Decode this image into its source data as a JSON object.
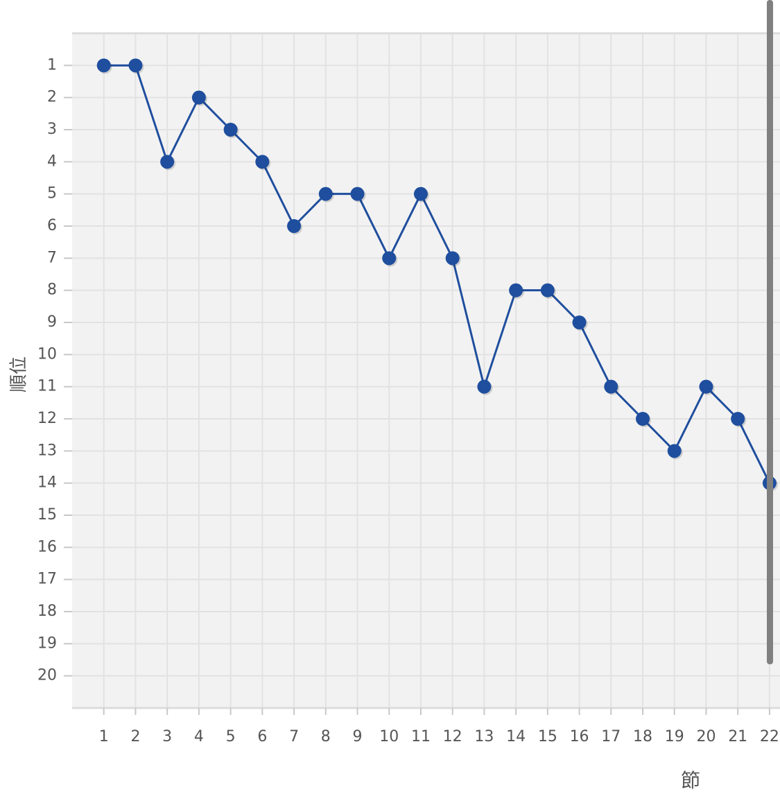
{
  "chart_data": {
    "type": "line",
    "x_label": "節",
    "y_label": "順位",
    "x": [
      1,
      2,
      3,
      4,
      5,
      6,
      7,
      8,
      9,
      10,
      11,
      12,
      13,
      14,
      15,
      16,
      17,
      18,
      19,
      20,
      21,
      22
    ],
    "series": [
      {
        "color": "#1f4e9e",
        "values": [
          1,
          1,
          4,
          2,
          3,
          4,
          6,
          5,
          5,
          7,
          5,
          7,
          11,
          8,
          8,
          9,
          11,
          12,
          13,
          11,
          12,
          14
        ]
      }
    ],
    "xlim": [
      0,
      22.33
    ],
    "xticks": [
      1,
      2,
      3,
      4,
      5,
      6,
      7,
      8,
      9,
      10,
      11,
      12,
      13,
      14,
      15,
      16,
      17,
      18,
      19,
      20,
      21,
      22
    ],
    "ylim": [
      21,
      0
    ],
    "yticks": [
      1,
      2,
      3,
      4,
      5,
      6,
      7,
      8,
      9,
      10,
      11,
      12,
      13,
      14,
      15,
      16,
      17,
      18,
      19,
      20
    ],
    "y_reversed": true,
    "grid": true
  }
}
